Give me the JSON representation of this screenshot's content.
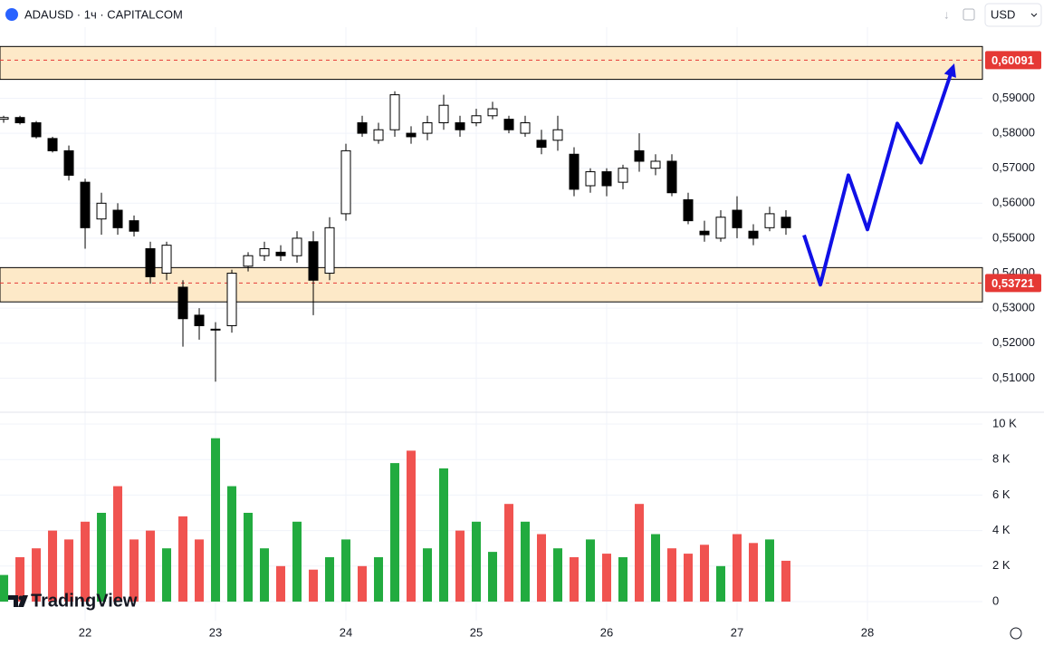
{
  "header": {
    "symbol": "ADAUSD · 1ч · CAPITALCOM",
    "currency": "USD"
  },
  "watermark": "TradingView",
  "chart_data": [
    {
      "type": "candlestick",
      "x": [
        21.375,
        21.5,
        21.625,
        21.75,
        21.875,
        22.0,
        22.125,
        22.25,
        22.375,
        22.5,
        22.625,
        22.75,
        22.875,
        23.0,
        23.125,
        23.25,
        23.375,
        23.5,
        23.625,
        23.75,
        23.875,
        24.0,
        24.125,
        24.25,
        24.375,
        24.5,
        24.625,
        24.75,
        24.875,
        25.0,
        25.125,
        25.25,
        25.375,
        25.5,
        25.625,
        25.75,
        25.875,
        26.0,
        26.125,
        26.25,
        26.375,
        26.5,
        26.625,
        26.75,
        26.875,
        27.0,
        27.125,
        27.25,
        27.375
      ],
      "open": [
        0.584,
        0.5845,
        0.583,
        0.5785,
        0.575,
        0.566,
        0.5555,
        0.558,
        0.555,
        0.547,
        0.54,
        0.536,
        0.528,
        0.524,
        0.525,
        0.542,
        0.545,
        0.546,
        0.545,
        0.549,
        0.54,
        0.557,
        0.583,
        0.578,
        0.581,
        0.58,
        0.58,
        0.583,
        0.583,
        0.583,
        0.585,
        0.584,
        0.58,
        0.578,
        0.578,
        0.574,
        0.565,
        0.569,
        0.566,
        0.575,
        0.57,
        0.572,
        0.561,
        0.552,
        0.55,
        0.558,
        0.552,
        0.553,
        0.556
      ],
      "high": [
        0.585,
        0.585,
        0.5835,
        0.579,
        0.5765,
        0.567,
        0.563,
        0.56,
        0.5565,
        0.549,
        0.549,
        0.538,
        0.53,
        0.526,
        0.541,
        0.546,
        0.549,
        0.548,
        0.552,
        0.552,
        0.556,
        0.577,
        0.585,
        0.583,
        0.592,
        0.582,
        0.585,
        0.591,
        0.585,
        0.587,
        0.589,
        0.585,
        0.585,
        0.581,
        0.585,
        0.576,
        0.57,
        0.57,
        0.571,
        0.58,
        0.574,
        0.574,
        0.563,
        0.555,
        0.558,
        0.562,
        0.554,
        0.559,
        0.558
      ],
      "low": [
        0.583,
        0.5825,
        0.5785,
        0.5745,
        0.5665,
        0.547,
        0.551,
        0.551,
        0.5505,
        0.537,
        0.538,
        0.519,
        0.521,
        0.509,
        0.523,
        0.5405,
        0.5435,
        0.5435,
        0.543,
        0.528,
        0.538,
        0.555,
        0.579,
        0.577,
        0.579,
        0.577,
        0.578,
        0.581,
        0.579,
        0.582,
        0.584,
        0.58,
        0.579,
        0.574,
        0.575,
        0.562,
        0.563,
        0.562,
        0.564,
        0.569,
        0.568,
        0.562,
        0.554,
        0.549,
        0.549,
        0.55,
        0.548,
        0.552,
        0.551
      ],
      "close": [
        0.5845,
        0.583,
        0.579,
        0.575,
        0.568,
        0.553,
        0.56,
        0.553,
        0.552,
        0.539,
        0.548,
        0.527,
        0.525,
        0.524,
        0.54,
        0.545,
        0.547,
        0.545,
        0.55,
        0.538,
        0.553,
        0.575,
        0.58,
        0.581,
        0.591,
        0.579,
        0.583,
        0.588,
        0.581,
        0.585,
        0.587,
        0.581,
        0.583,
        0.576,
        0.581,
        0.564,
        0.569,
        0.565,
        0.57,
        0.572,
        0.572,
        0.563,
        0.555,
        0.551,
        0.556,
        0.553,
        0.55,
        0.557,
        0.553
      ],
      "up_color": "#ffffff",
      "down_color": "#000000",
      "border_color": "#000000",
      "xlim": [
        21.347,
        28.882
      ],
      "xticks": [
        22,
        23,
        24,
        25,
        26,
        27,
        28
      ],
      "ylim": [
        0.5,
        0.6155
      ],
      "yticks": [
        {
          "value": 0.51,
          "label": "0,51000"
        },
        {
          "value": 0.52,
          "label": "0,52000"
        },
        {
          "value": 0.53,
          "label": "0,53000"
        },
        {
          "value": 0.54,
          "label": "0,54000"
        },
        {
          "value": 0.55,
          "label": "0,55000"
        },
        {
          "value": 0.56,
          "label": "0,56000"
        },
        {
          "value": 0.57,
          "label": "0,57000"
        },
        {
          "value": 0.58,
          "label": "0,58000"
        },
        {
          "value": 0.59,
          "label": "0,59000"
        }
      ],
      "grid": true,
      "zones": [
        {
          "top": 0.6048,
          "bottom": 0.5954,
          "level": {
            "value": 0.60091,
            "label": "0,60091"
          }
        },
        {
          "top": 0.5416,
          "bottom": 0.5318,
          "level": {
            "value": 0.53721,
            "label": "0,53721"
          }
        }
      ],
      "zone_color": "#fde9c8",
      "level_color": "#e53935",
      "projection": {
        "x": [
          27.514,
          27.639,
          27.854,
          28.0,
          28.229,
          28.41,
          28.653
        ],
        "y": [
          0.5509,
          0.5367,
          0.568,
          0.5525,
          0.5828,
          0.5716,
          0.5985
        ],
        "color": "#1010e6"
      }
    },
    {
      "type": "bar",
      "values": [
        1500,
        2500,
        3000,
        4000,
        3500,
        4500,
        5000,
        6500,
        3500,
        4000,
        3000,
        4800,
        3500,
        9200,
        6500,
        5000,
        3000,
        2000,
        4500,
        1800,
        2500,
        3500,
        2000,
        2500,
        7800,
        8500,
        3000,
        7500,
        4000,
        4500,
        2800,
        5500,
        4500,
        3800,
        3000,
        2500,
        3500,
        2700,
        2500,
        5500,
        3800,
        3000,
        2700,
        3200,
        2000,
        3800,
        3300,
        3500,
        2300
      ],
      "up_color": "#22ab3f",
      "down_color": "#f05350",
      "ylim": [
        0,
        10000
      ],
      "yticks": [
        0,
        {
          "value": 2000,
          "label": "2 K"
        },
        {
          "value": 4000,
          "label": "4 K"
        },
        {
          "value": 6000,
          "label": "6 K"
        },
        {
          "value": 8000,
          "label": "8 K"
        },
        {
          "value": 10000,
          "label": "10 K"
        }
      ]
    }
  ]
}
